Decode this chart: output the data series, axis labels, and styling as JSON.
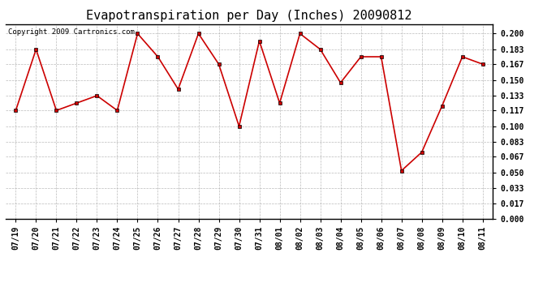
{
  "title": "Evapotranspiration per Day (Inches) 20090812",
  "copyright_text": "Copyright 2009 Cartronics.com",
  "dates": [
    "07/19",
    "07/20",
    "07/21",
    "07/22",
    "07/23",
    "07/24",
    "07/25",
    "07/26",
    "07/27",
    "07/28",
    "07/29",
    "07/30",
    "07/31",
    "08/01",
    "08/02",
    "08/03",
    "08/04",
    "08/05",
    "08/06",
    "08/07",
    "08/08",
    "08/09",
    "08/10",
    "08/11"
  ],
  "values": [
    0.117,
    0.183,
    0.117,
    0.125,
    0.133,
    0.117,
    0.2,
    0.175,
    0.14,
    0.2,
    0.167,
    0.1,
    0.192,
    0.125,
    0.2,
    0.183,
    0.147,
    0.175,
    0.175,
    0.052,
    0.072,
    0.122,
    0.175,
    0.167
  ],
  "yticks": [
    0.0,
    0.017,
    0.033,
    0.05,
    0.067,
    0.083,
    0.1,
    0.117,
    0.133,
    0.15,
    0.167,
    0.183,
    0.2
  ],
  "ylim": [
    0.0,
    0.21
  ],
  "line_color": "#cc0000",
  "marker": "s",
  "marker_size": 2.5,
  "bg_color": "#ffffff",
  "grid_color": "#aaaaaa",
  "title_fontsize": 11,
  "tick_fontsize": 7,
  "copyright_fontsize": 6.5
}
